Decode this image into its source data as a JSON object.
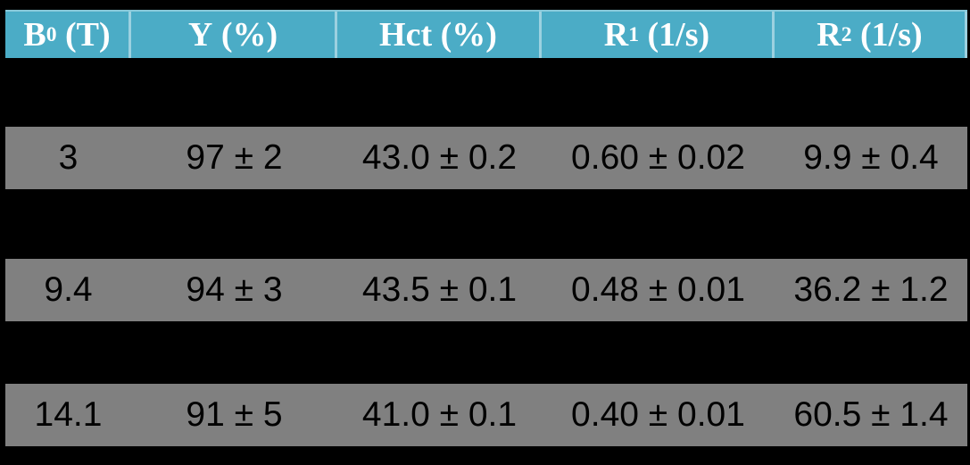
{
  "table": {
    "columns": [
      {
        "base": "B",
        "sub": "0",
        "rest": " (T)"
      },
      {
        "base": "Y",
        "sub": "",
        "rest": " (%)"
      },
      {
        "base": "Hct",
        "sub": "",
        "rest": " (%)"
      },
      {
        "base": "R",
        "sub": "1",
        "rest": " (1/s)"
      },
      {
        "base": "R",
        "sub": "2",
        "rest": " (1/s)"
      }
    ],
    "rows": [
      {
        "cells": [
          "3",
          "97 ± 2",
          "43.0 ± 0.2",
          "0.60 ± 0.02",
          "9.9 ± 0.4"
        ]
      },
      {
        "cells": [
          "9.4",
          "94 ± 3",
          "43.5 ± 0.1",
          "0.48 ± 0.01",
          "36.2 ± 1.2"
        ]
      },
      {
        "cells": [
          "14.1",
          "91 ± 5",
          "41.0 ± 0.1",
          "0.40 ± 0.01",
          "60.5 ± 1.4"
        ]
      }
    ]
  },
  "colors": {
    "header_bg": "#4BACC6",
    "header_text": "#FFFFFF",
    "row_bg": "#808080",
    "row_text": "#000000",
    "background": "#000000",
    "divider": "#9DD0DF"
  },
  "chart_data": {
    "type": "table",
    "title": "",
    "columns": [
      "B0 (T)",
      "Y (%)",
      "Hct (%)",
      "R1 (1/s)",
      "R2 (1/s)"
    ],
    "rows": [
      [
        "3",
        "97 ± 2",
        "43.0 ± 0.2",
        "0.60 ± 0.02",
        "9.9 ± 0.4"
      ],
      [
        "9.4",
        "94 ± 3",
        "43.5 ± 0.1",
        "0.48 ± 0.01",
        "36.2 ± 1.2"
      ],
      [
        "14.1",
        "91 ± 5",
        "41.0 ± 0.1",
        "0.40 ± 0.01",
        "60.5 ± 1.4"
      ]
    ]
  }
}
